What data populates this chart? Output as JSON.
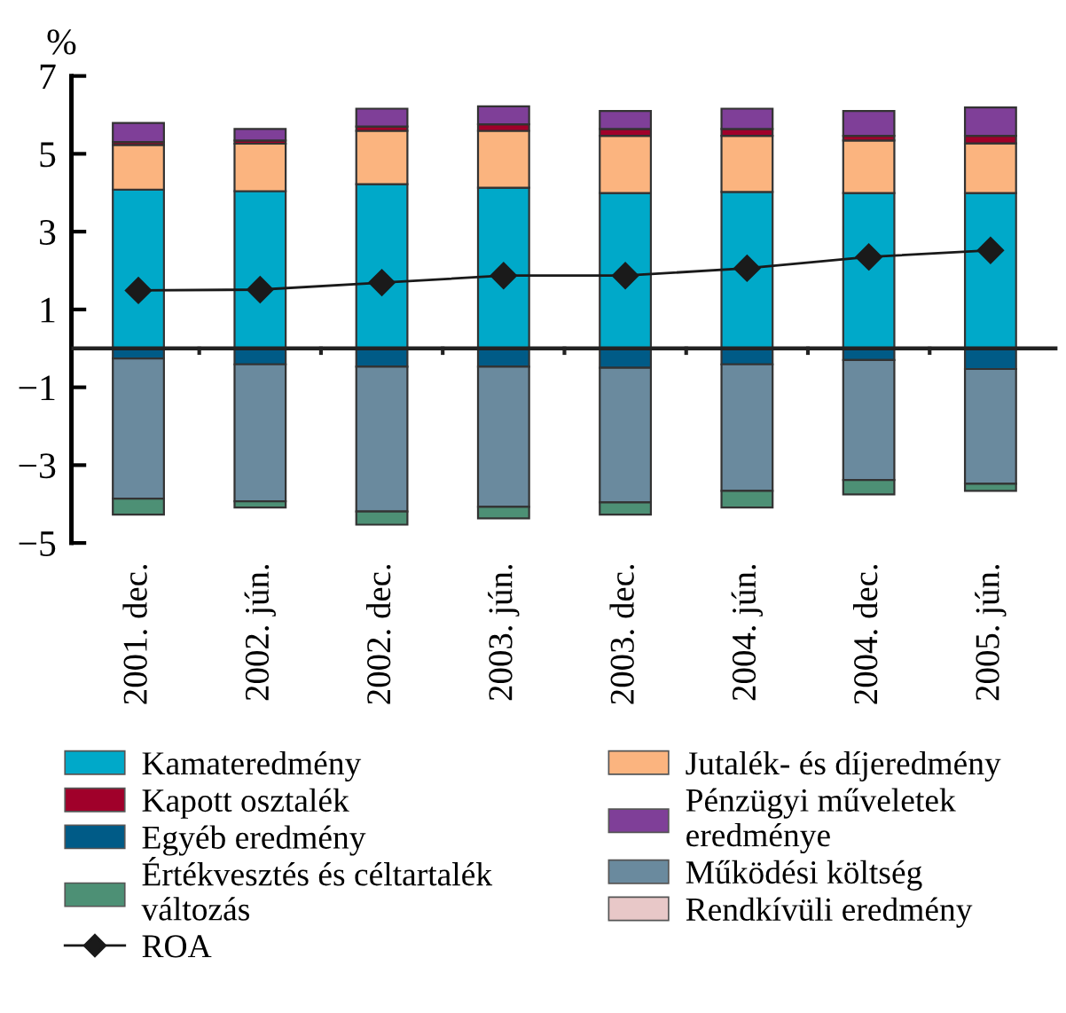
{
  "chart_data": {
    "type": "bar",
    "stacked": true,
    "ylabel": "%",
    "categories": [
      "2001. dec.",
      "2002. jún.",
      "2002. dec.",
      "2003. jún.",
      "2003. dec.",
      "2004. jún.",
      "2004. dec.",
      "2005. jún."
    ],
    "series": [
      {
        "name": "Kamateredmény",
        "color": "#00a9c9",
        "values": [
          4.08,
          4.04,
          4.22,
          4.13,
          3.99,
          4.02,
          3.99,
          3.99
        ]
      },
      {
        "name": "Jutalék- és díjeredmény",
        "color": "#fbb47f",
        "values": [
          1.15,
          1.22,
          1.37,
          1.46,
          1.47,
          1.44,
          1.35,
          1.28
        ]
      },
      {
        "name": "Kapott osztalék",
        "color": "#a0002a",
        "values": [
          0.07,
          0.08,
          0.11,
          0.17,
          0.18,
          0.18,
          0.12,
          0.19
        ]
      },
      {
        "name": "Pénzügyi műveletek\neredménye",
        "color": "#7f3f98",
        "values": [
          0.49,
          0.3,
          0.46,
          0.46,
          0.46,
          0.52,
          0.64,
          0.73
        ]
      },
      {
        "name": "Egyéb eredmény",
        "color": "#005b87",
        "values": [
          -0.26,
          -0.41,
          -0.47,
          -0.47,
          -0.5,
          -0.41,
          -0.3,
          -0.53
        ]
      },
      {
        "name": "Működési költség",
        "color": "#6a8a9e",
        "values": [
          -3.6,
          -3.52,
          -3.72,
          -3.6,
          -3.46,
          -3.25,
          -3.08,
          -2.95
        ]
      },
      {
        "name": "Értékvesztés és céltartalék\nváltozás",
        "color": "#4d9075",
        "values": [
          -0.41,
          -0.16,
          -0.34,
          -0.3,
          -0.31,
          -0.43,
          -0.37,
          -0.18
        ]
      },
      {
        "name": "Rendkívüli eredmény",
        "color": "#e8c8c8",
        "values": [
          null,
          null,
          null,
          null,
          null,
          null,
          null,
          null
        ]
      },
      {
        "name": "ROA",
        "type": "line",
        "color": "#1a1a1a",
        "marker": "diamond",
        "values": [
          1.49,
          1.51,
          1.69,
          1.87,
          1.87,
          2.06,
          2.35,
          2.52
        ]
      }
    ],
    "ylim": [
      -5,
      7
    ],
    "yticks": [
      7,
      5,
      3,
      1,
      {
        "value": -1,
        "label": "−1"
      },
      {
        "value": -3,
        "label": "−3"
      },
      {
        "value": -5,
        "label": "−5"
      }
    ],
    "grid": false,
    "legend": "bottom"
  }
}
